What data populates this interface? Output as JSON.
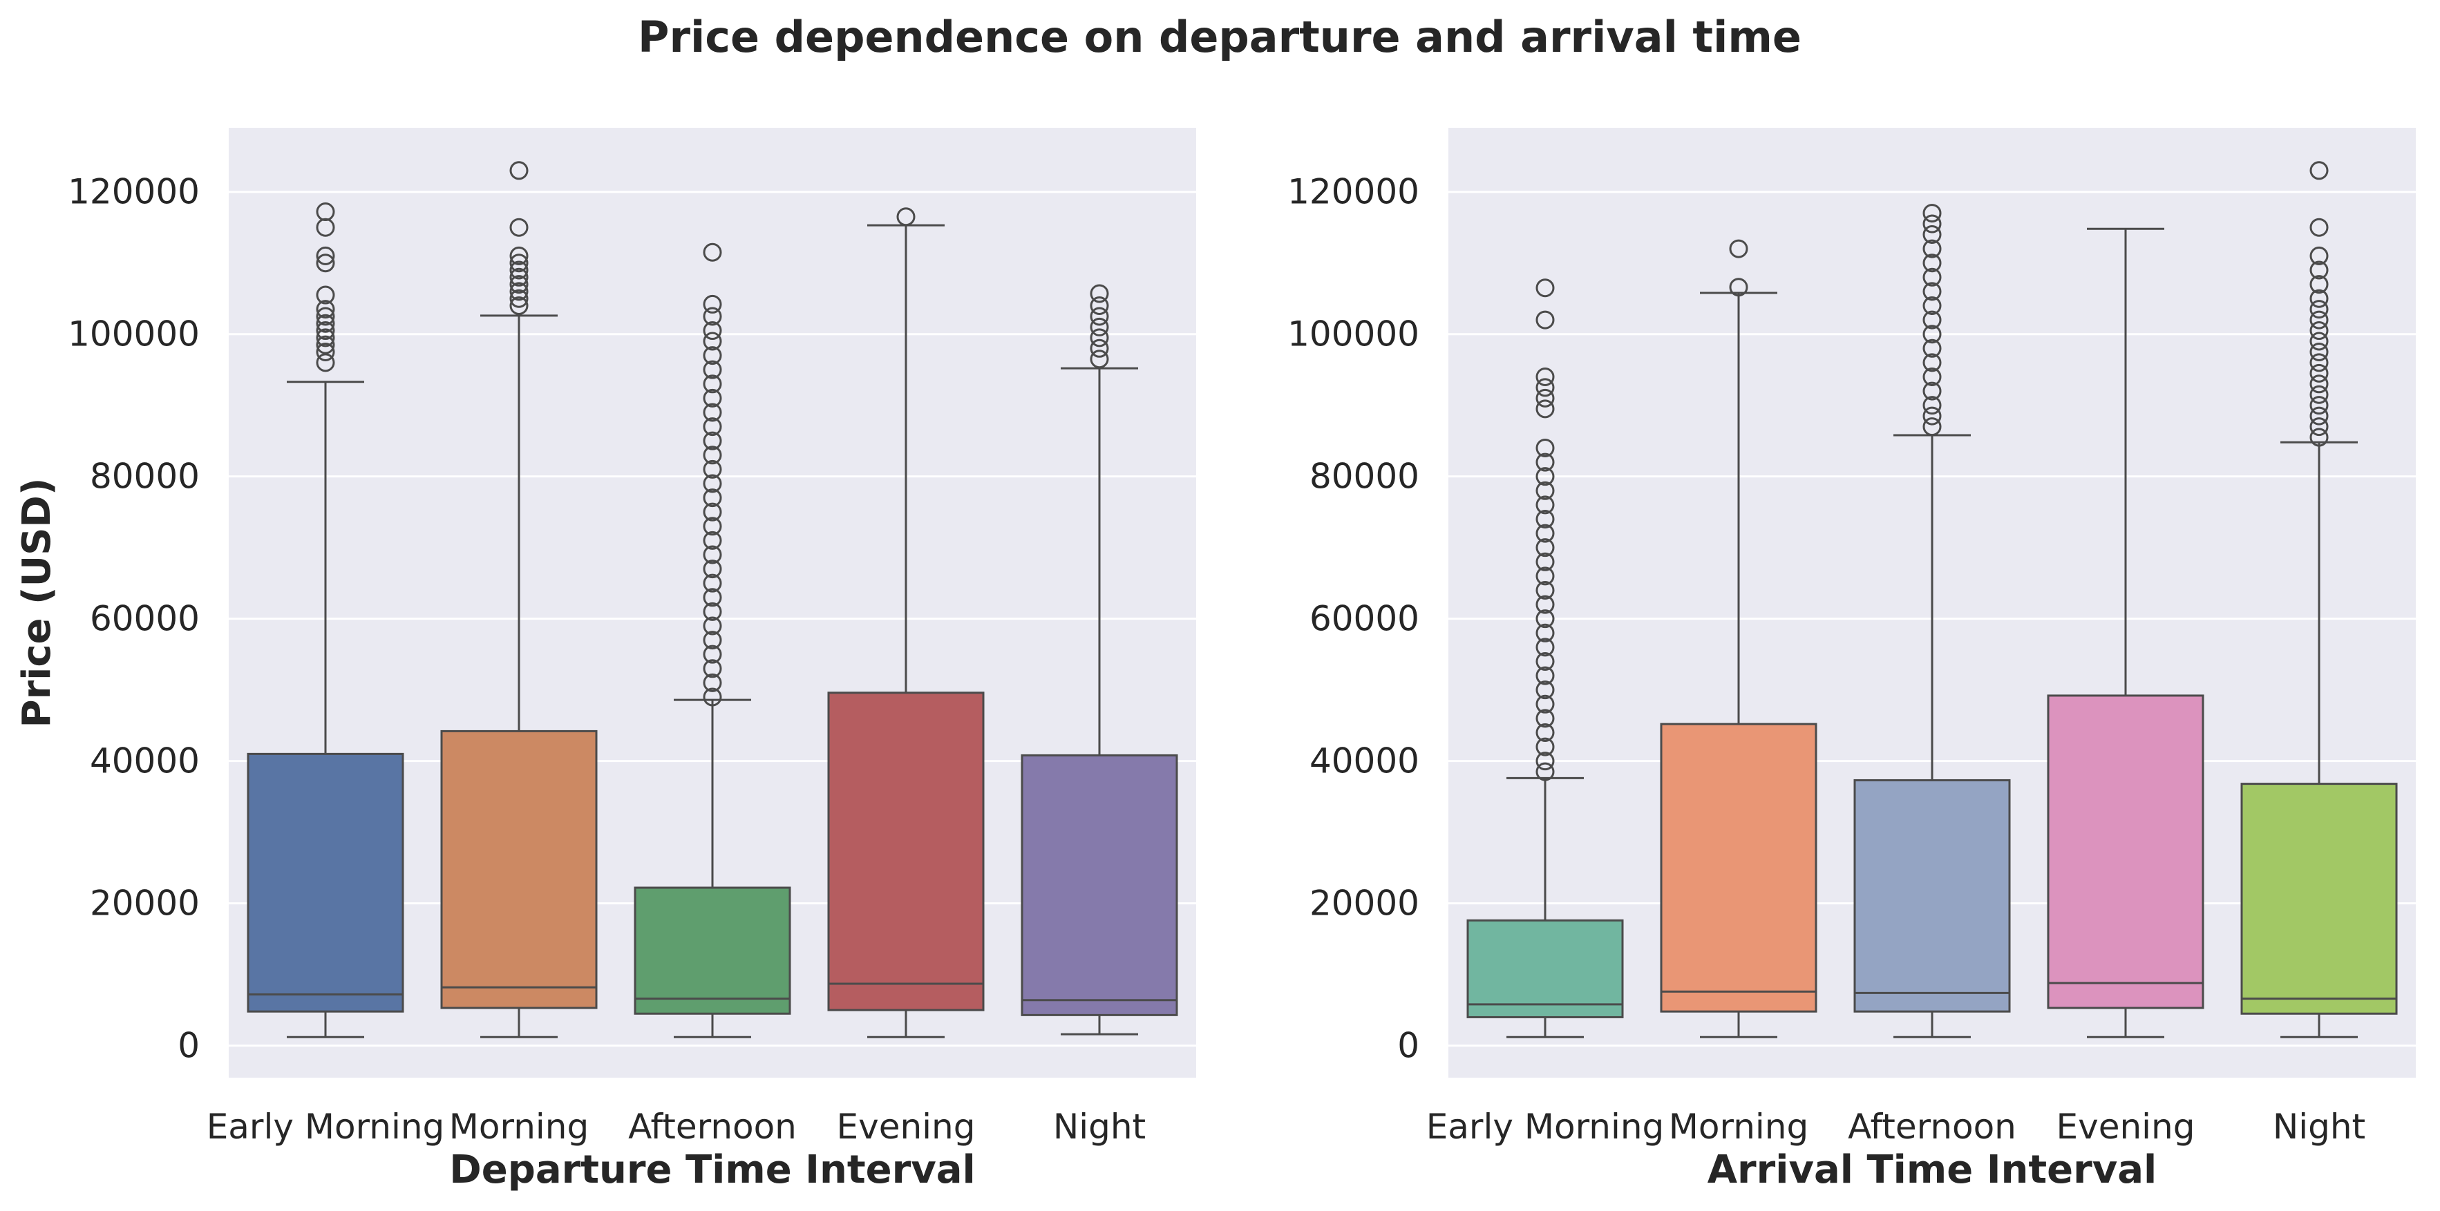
{
  "page_title": "Price dependence on departure and arrival time",
  "chart_data": [
    {
      "type": "box",
      "xlabel": "Departure Time Interval",
      "ylabel": "Price (USD)",
      "ylim": [
        -4500,
        129000
      ],
      "yticks": [
        0,
        20000,
        40000,
        60000,
        80000,
        100000,
        120000
      ],
      "grid": true,
      "categories": [
        "Early Morning",
        "Morning",
        "Afternoon",
        "Evening",
        "Night"
      ],
      "colors": [
        "#5975a4",
        "#cc8963",
        "#5f9e6e",
        "#b55d60",
        "#857aab"
      ],
      "boxes": [
        {
          "whislo": 1200,
          "q1": 4800,
          "med": 7200,
          "q3": 41000,
          "whishi": 93300,
          "fliers": [
            96000,
            97500,
            98500,
            99500,
            100500,
            101500,
            102500,
            103500,
            105500,
            110000,
            111000,
            115000,
            117200
          ]
        },
        {
          "whislo": 1200,
          "q1": 5300,
          "med": 8200,
          "q3": 44200,
          "whishi": 102600,
          "fliers": [
            104000,
            105000,
            106000,
            107000,
            108000,
            109000,
            110000,
            111000,
            115000,
            123000
          ]
        },
        {
          "whislo": 1200,
          "q1": 4500,
          "med": 6600,
          "q3": 22200,
          "whishi": 48600,
          "fliers": [
            49000,
            51000,
            53000,
            55000,
            57000,
            59000,
            61000,
            63000,
            65000,
            67000,
            69000,
            71000,
            73000,
            75000,
            77000,
            79000,
            81000,
            83000,
            85000,
            87000,
            89000,
            91000,
            93000,
            95000,
            97000,
            99000,
            100500,
            102500,
            104200,
            111500
          ]
        },
        {
          "whislo": 1200,
          "q1": 5000,
          "med": 8700,
          "q3": 49600,
          "whishi": 115300,
          "fliers": [
            116500
          ]
        },
        {
          "whislo": 1600,
          "q1": 4300,
          "med": 6400,
          "q3": 40800,
          "whishi": 95200,
          "fliers": [
            96500,
            98000,
            99500,
            101000,
            102500,
            104000,
            105700
          ]
        }
      ]
    },
    {
      "type": "box",
      "xlabel": "Arrival Time Interval",
      "ylabel": "",
      "ylim": [
        -4500,
        129000
      ],
      "yticks": [
        0,
        20000,
        40000,
        60000,
        80000,
        100000,
        120000
      ],
      "grid": true,
      "categories": [
        "Early Morning",
        "Morning",
        "Afternoon",
        "Evening",
        "Night"
      ],
      "colors": [
        "#71b6a0",
        "#e99675",
        "#94a4c3",
        "#dc93be",
        "#a2c865"
      ],
      "boxes": [
        {
          "whislo": 1200,
          "q1": 4000,
          "med": 5800,
          "q3": 17600,
          "whishi": 37600,
          "fliers": [
            38500,
            40000,
            42000,
            44000,
            46000,
            48000,
            50000,
            52000,
            54000,
            56000,
            58000,
            60000,
            62000,
            64000,
            66000,
            68000,
            70000,
            72000,
            74000,
            76000,
            78000,
            80000,
            82000,
            84000,
            89500,
            91000,
            92500,
            94000,
            102000,
            106500
          ]
        },
        {
          "whislo": 1200,
          "q1": 4800,
          "med": 7600,
          "q3": 45200,
          "whishi": 105800,
          "fliers": [
            106600,
            112000
          ]
        },
        {
          "whislo": 1200,
          "q1": 4800,
          "med": 7400,
          "q3": 37300,
          "whishi": 85800,
          "fliers": [
            87000,
            88500,
            90000,
            92000,
            94000,
            96000,
            98000,
            100000,
            102000,
            104000,
            106000,
            108000,
            110000,
            112000,
            114000,
            115500,
            117000
          ]
        },
        {
          "whislo": 1200,
          "q1": 5300,
          "med": 8800,
          "q3": 49200,
          "whishi": 114800,
          "fliers": []
        },
        {
          "whislo": 1200,
          "q1": 4500,
          "med": 6600,
          "q3": 36800,
          "whishi": 84800,
          "fliers": [
            85500,
            87000,
            88500,
            90000,
            91500,
            93000,
            94500,
            96000,
            97500,
            99000,
            100500,
            102000,
            103500,
            105000,
            107000,
            109000,
            111000,
            115000,
            123000
          ]
        }
      ]
    }
  ]
}
